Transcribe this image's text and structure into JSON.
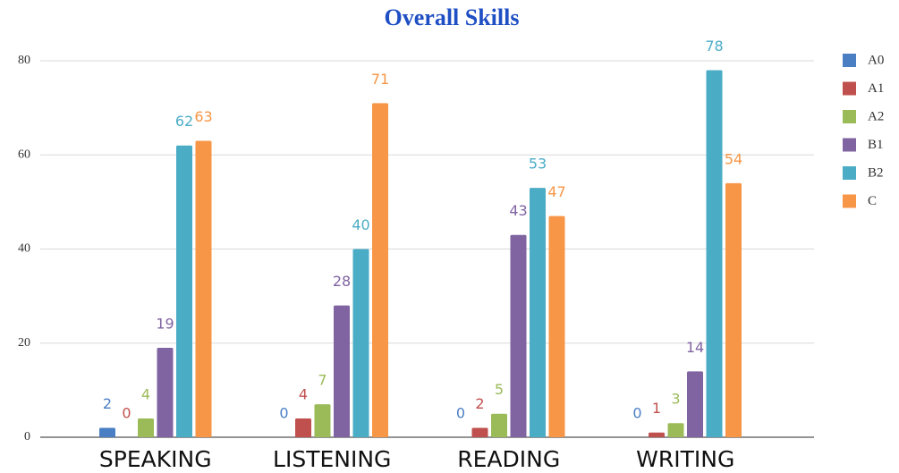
{
  "chart_data": {
    "type": "bar",
    "title": "Overall Skills",
    "categories": [
      "SPEAKING",
      "LISTENING",
      "READING",
      "WRITING"
    ],
    "series": [
      {
        "name": "A0",
        "color": "#4a7fc4",
        "values": [
          2,
          0,
          0,
          0
        ]
      },
      {
        "name": "A1",
        "color": "#c0504d",
        "values": [
          0,
          4,
          2,
          1
        ]
      },
      {
        "name": "A2",
        "color": "#9bbb59",
        "values": [
          4,
          7,
          5,
          3
        ]
      },
      {
        "name": "B1",
        "color": "#8064a2",
        "values": [
          19,
          28,
          43,
          14
        ]
      },
      {
        "name": "B2",
        "color": "#4bacc6",
        "values": [
          62,
          40,
          53,
          78
        ]
      },
      {
        "name": "C",
        "color": "#f79646",
        "values": [
          63,
          71,
          47,
          54
        ]
      }
    ],
    "ylim": [
      0,
      80
    ],
    "yticks": [
      0,
      20,
      40,
      60,
      80
    ],
    "grid": true,
    "legend": "right"
  }
}
